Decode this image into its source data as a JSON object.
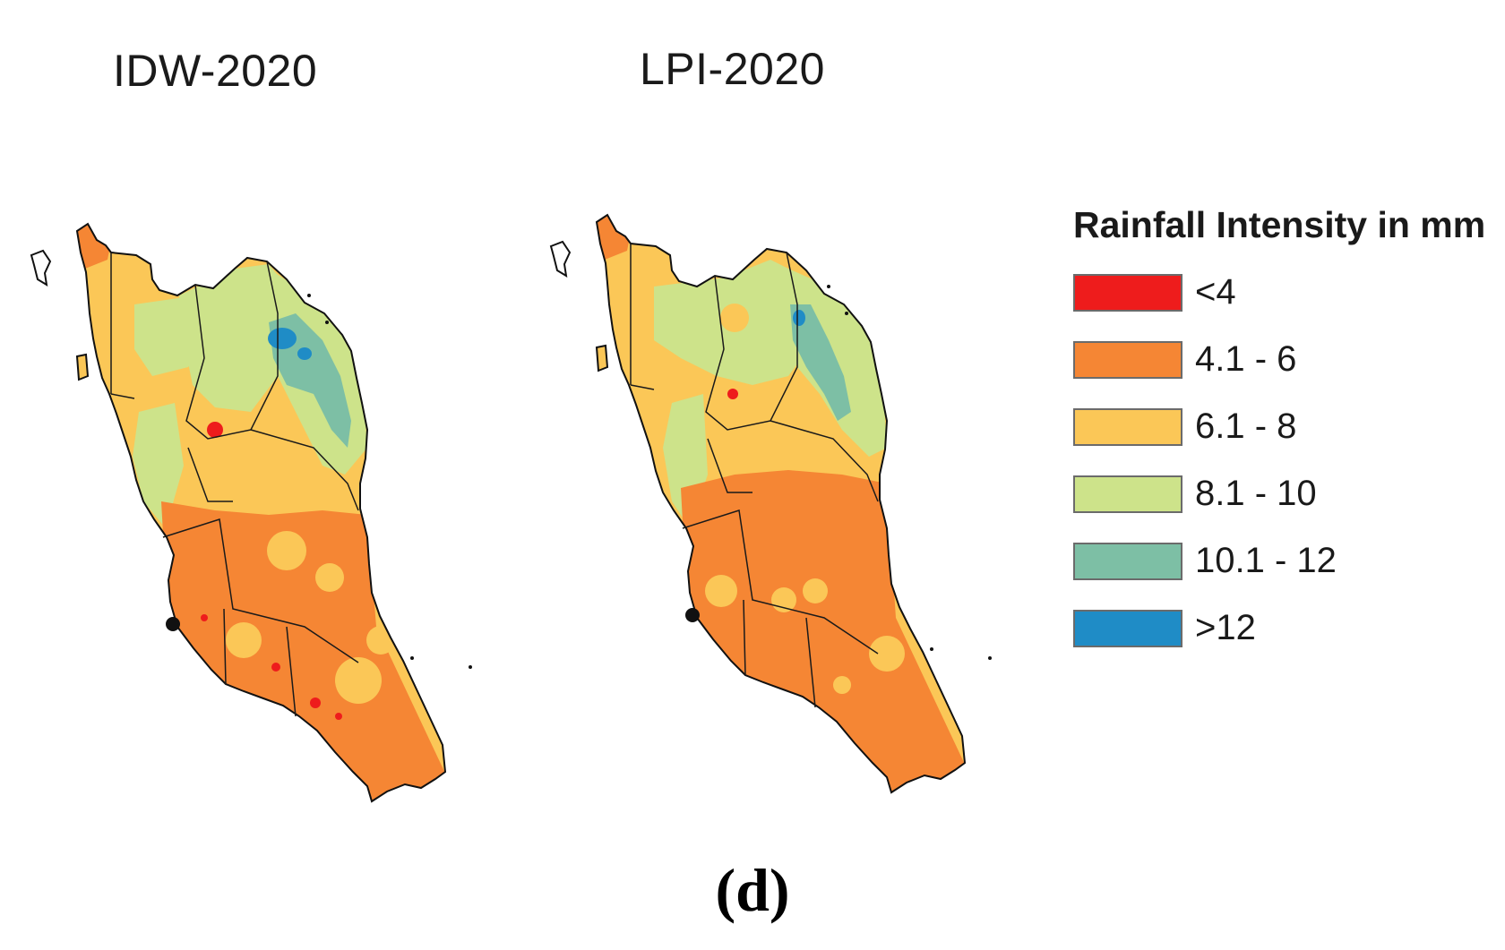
{
  "maps": [
    {
      "id": "idw",
      "title": "IDW-2020",
      "method": "IDW",
      "year": "2020"
    },
    {
      "id": "lpi",
      "title": "LPI-2020",
      "method": "LPI",
      "year": "2020"
    }
  ],
  "legend": {
    "title": "Rainfall Intensity in mm",
    "items": [
      {
        "label": "<4",
        "color": "#ee1c1c"
      },
      {
        "label": "4.1 - 6",
        "color": "#f58634"
      },
      {
        "label": "6.1 - 8",
        "color": "#fbc757"
      },
      {
        "label": "8.1 - 10",
        "color": "#cde38a"
      },
      {
        "label": "10.1 - 12",
        "color": "#7dbfa5"
      },
      {
        "label": ">12",
        "color": "#1f8cc6"
      }
    ]
  },
  "panel_label": "(d)"
}
